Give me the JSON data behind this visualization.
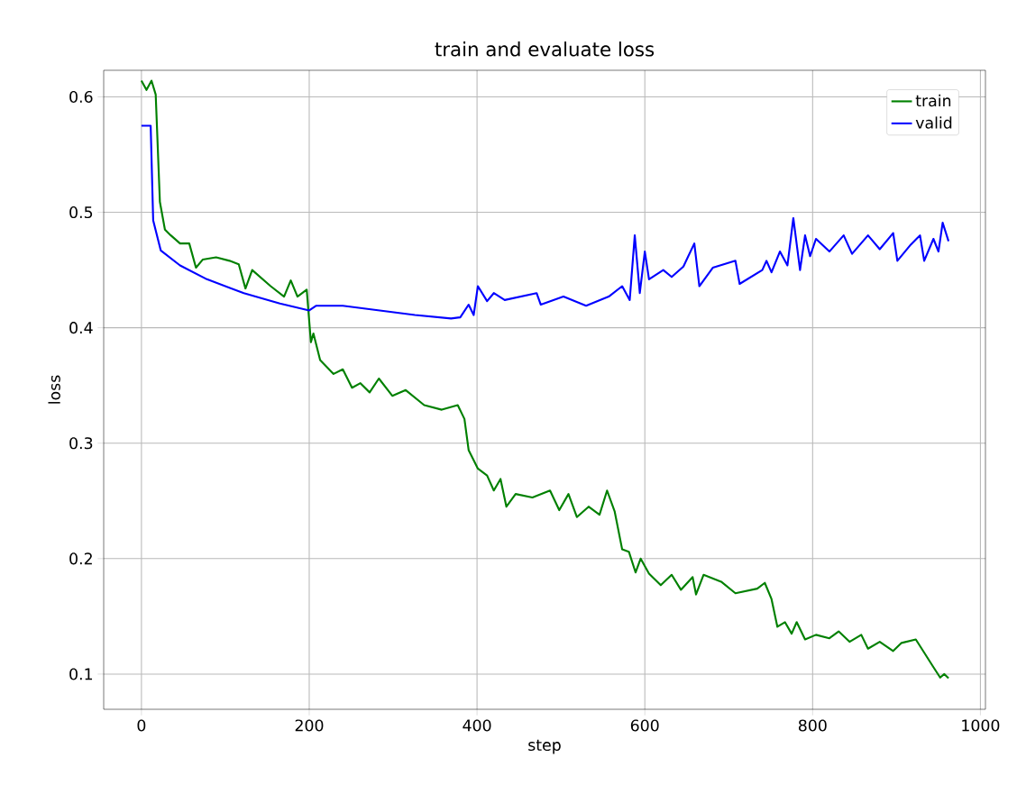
{
  "chart_data": {
    "type": "line",
    "title": "train and evaluate loss",
    "xlabel": "step",
    "ylabel": "loss",
    "xlim": [
      -45,
      1006
    ],
    "ylim": [
      0.0695,
      0.623
    ],
    "xticks": [
      0,
      200,
      400,
      600,
      800,
      1000
    ],
    "yticks": [
      0.1,
      0.2,
      0.3,
      0.4,
      0.5,
      0.6
    ],
    "grid": true,
    "legend": "top right",
    "series": [
      {
        "name": "train",
        "color": "#008000",
        "x": [
          0,
          6,
          12,
          17,
          22,
          28,
          35,
          46,
          57,
          65,
          73,
          89,
          105,
          116,
          124,
          132,
          154,
          170,
          178,
          186,
          197,
          202,
          205,
          213,
          229,
          240,
          251,
          261,
          272,
          283,
          299,
          315,
          337,
          358,
          377,
          385,
          390,
          401,
          412,
          420,
          428,
          435,
          446,
          466,
          487,
          498,
          509,
          519,
          533,
          546,
          555,
          564,
          573,
          581,
          589,
          595,
          605,
          619,
          632,
          643,
          657,
          661,
          670,
          691,
          708,
          734,
          743,
          751,
          758,
          767,
          775,
          781,
          791,
          804,
          820,
          831,
          844,
          858,
          866,
          880,
          896,
          906,
          923,
          930,
          944,
          952,
          957,
          962
        ],
        "values": [
          0.614,
          0.606,
          0.614,
          0.602,
          0.509,
          0.485,
          0.48,
          0.473,
          0.473,
          0.452,
          0.459,
          0.461,
          0.458,
          0.455,
          0.434,
          0.45,
          0.436,
          0.427,
          0.441,
          0.427,
          0.433,
          0.3875,
          0.395,
          0.372,
          0.36,
          0.364,
          0.348,
          0.352,
          0.344,
          0.356,
          0.341,
          0.346,
          0.333,
          0.329,
          0.333,
          0.321,
          0.294,
          0.278,
          0.272,
          0.259,
          0.269,
          0.245,
          0.256,
          0.253,
          0.259,
          0.242,
          0.256,
          0.236,
          0.245,
          0.238,
          0.259,
          0.241,
          0.208,
          0.206,
          0.188,
          0.2,
          0.187,
          0.177,
          0.186,
          0.173,
          0.184,
          0.169,
          0.186,
          0.18,
          0.17,
          0.174,
          0.179,
          0.165,
          0.141,
          0.145,
          0.135,
          0.145,
          0.13,
          0.134,
          0.131,
          0.137,
          0.128,
          0.134,
          0.122,
          0.128,
          0.12,
          0.127,
          0.13,
          0.122,
          0.106,
          0.097,
          0.1,
          0.0965
        ]
      },
      {
        "name": "valid",
        "color": "#0000ff",
        "x": [
          0,
          11,
          14,
          23,
          46,
          78,
          122,
          165,
          200,
          208,
          240,
          283,
          326,
          369,
          380,
          390,
          396,
          401,
          412,
          420,
          433,
          471,
          476,
          503,
          530,
          557,
          573,
          582,
          588,
          594,
          600,
          605,
          622,
          632,
          646,
          659,
          665,
          681,
          708,
          713,
          740,
          745,
          751,
          761,
          770,
          777,
          785,
          791,
          797,
          804,
          820,
          837,
          847,
          866,
          880,
          896,
          901,
          917,
          928,
          933,
          944,
          950,
          955,
          962
        ],
        "values": [
          0.575,
          0.575,
          0.493,
          0.467,
          0.454,
          0.442,
          0.43,
          0.421,
          0.415,
          0.419,
          0.419,
          0.415,
          0.411,
          0.408,
          0.409,
          0.42,
          0.411,
          0.436,
          0.423,
          0.43,
          0.424,
          0.43,
          0.42,
          0.427,
          0.419,
          0.427,
          0.436,
          0.424,
          0.48,
          0.43,
          0.466,
          0.442,
          0.45,
          0.444,
          0.453,
          0.473,
          0.436,
          0.452,
          0.458,
          0.438,
          0.45,
          0.458,
          0.448,
          0.466,
          0.454,
          0.495,
          0.45,
          0.48,
          0.462,
          0.477,
          0.466,
          0.48,
          0.464,
          0.48,
          0.468,
          0.482,
          0.458,
          0.472,
          0.48,
          0.458,
          0.477,
          0.466,
          0.491,
          0.475
        ]
      }
    ]
  }
}
